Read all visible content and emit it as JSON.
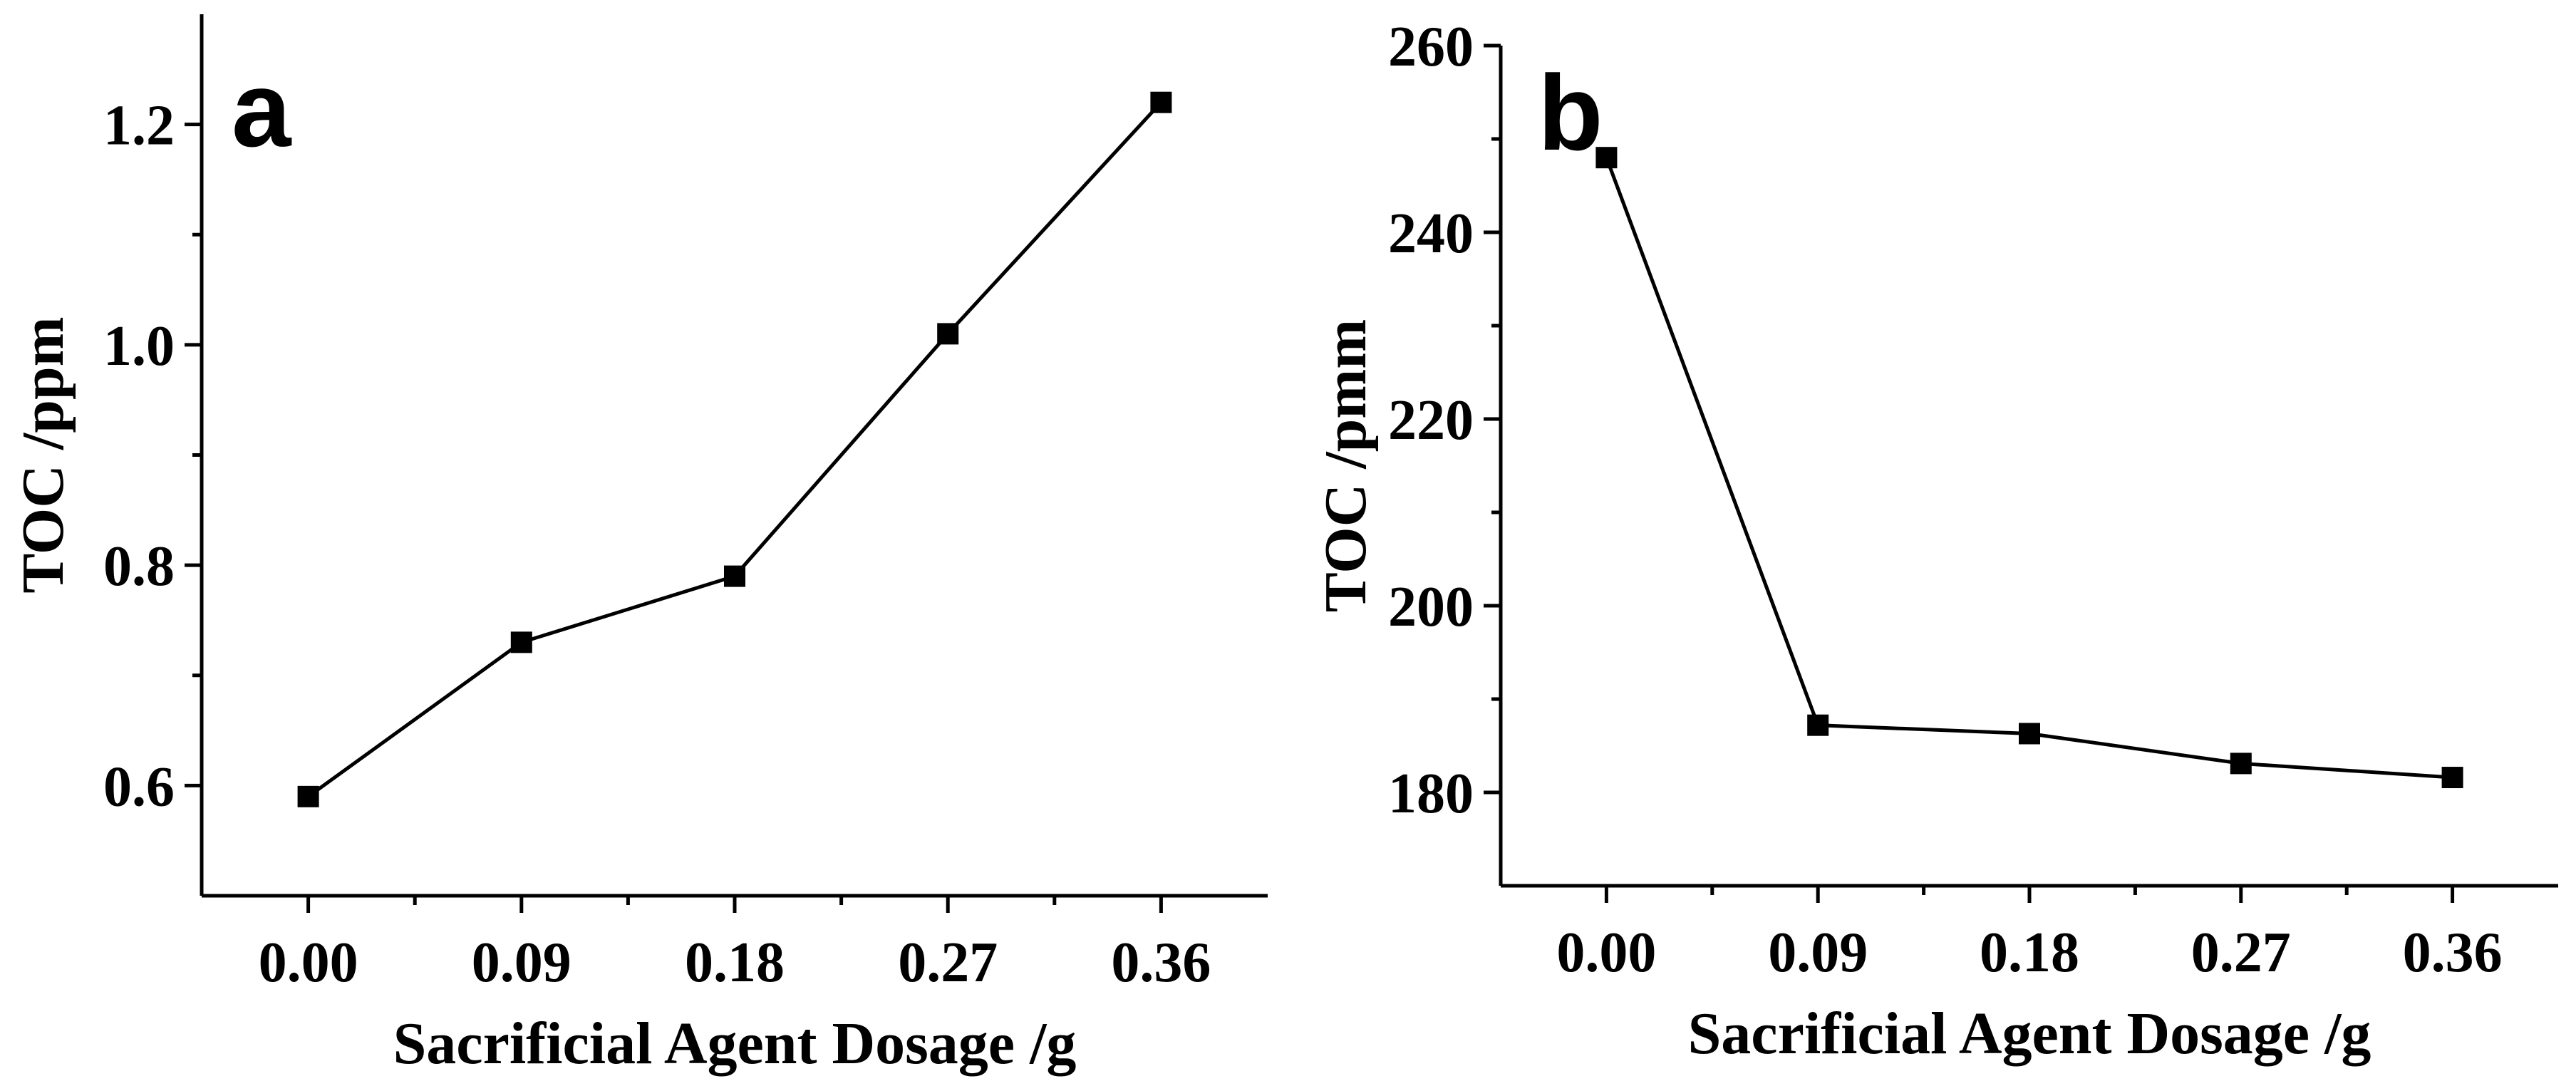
{
  "chart_data": [
    {
      "type": "line",
      "panel_label": "a",
      "xlabel": "Sacrificial Agent Dosage /g",
      "ylabel": "TOC /ppm",
      "categories": [
        "0.00",
        "0.09",
        "0.18",
        "0.27",
        "0.36"
      ],
      "x": [
        0.0,
        0.09,
        0.18,
        0.27,
        0.36
      ],
      "xlim": [
        -0.045,
        0.405
      ],
      "ylim": [
        0.5,
        1.3
      ],
      "yticks": [
        0.6,
        0.8,
        1.0,
        1.2
      ],
      "ytick_labels": [
        "0.6",
        "0.8",
        "1.0",
        "1.2"
      ],
      "series": [
        {
          "name": "TOC",
          "values": [
            0.59,
            0.73,
            0.79,
            1.01,
            1.22
          ]
        }
      ],
      "marker": "square",
      "grid": false
    },
    {
      "type": "line",
      "panel_label": "b",
      "xlabel": "Sacrificial Agent Dosage /g",
      "ylabel": "TOC /pmm",
      "categories": [
        "0.00",
        "0.09",
        "0.18",
        "0.27",
        "0.36"
      ],
      "x": [
        0.0,
        0.09,
        0.18,
        0.27,
        0.36
      ],
      "xlim": [
        -0.045,
        0.405
      ],
      "ylim": [
        170,
        260
      ],
      "yticks": [
        180,
        200,
        220,
        240,
        260
      ],
      "ytick_labels": [
        "180",
        "200",
        "220",
        "240",
        "260"
      ],
      "series": [
        {
          "name": "TOC",
          "values": [
            248,
            187.2,
            186.3,
            183.1,
            181.6
          ]
        }
      ],
      "marker": "square",
      "grid": false
    }
  ]
}
